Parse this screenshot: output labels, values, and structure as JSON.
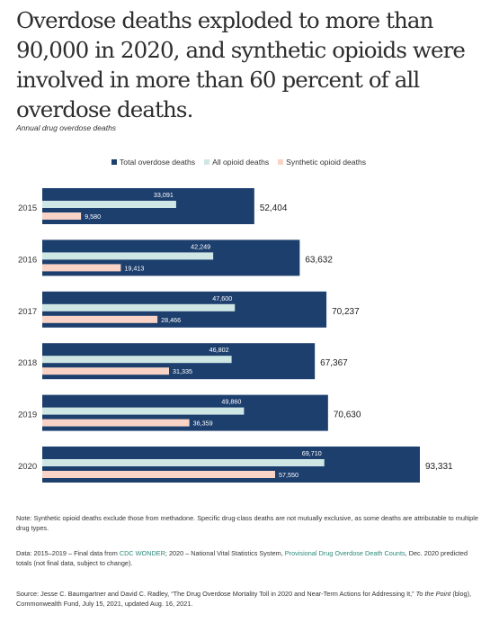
{
  "headline": "Overdose deaths exploded to more than 90,000 in 2020, and synthetic opioids were involved in more than 60 percent of all overdose deaths.",
  "chart_data": {
    "type": "bar",
    "title": "Annual drug overdose deaths",
    "categories": [
      "2015",
      "2016",
      "2017",
      "2018",
      "2019",
      "2020"
    ],
    "series": [
      {
        "name": "Total overdose deaths",
        "values": [
          52404,
          63632,
          70237,
          67367,
          70630,
          93331
        ],
        "labels": [
          "52,404",
          "63,632",
          "70,237",
          "67,367",
          "70,630",
          "93,331"
        ],
        "color": "#1d3f6e"
      },
      {
        "name": "All opioid deaths",
        "values": [
          33091,
          42249,
          47600,
          46802,
          49860,
          69710
        ],
        "labels": [
          "33,091",
          "42,249",
          "47,600",
          "46,802",
          "49,860",
          "69,710"
        ],
        "color": "#cfe7e4"
      },
      {
        "name": "Synthetic opioid deaths",
        "values": [
          9580,
          19413,
          28466,
          31335,
          36359,
          57550
        ],
        "labels": [
          "9,580",
          "19,413",
          "28,466",
          "31,335",
          "36,359",
          "57,550"
        ],
        "color": "#f9d4c6"
      }
    ],
    "orientation": "horizontal",
    "legend_position": "top"
  },
  "notes": {
    "note": "Note: Synthetic opioid deaths exclude those from methadone. Specific drug-class deaths are not mutually exclusive, as some deaths are attributable to multiple drug types.",
    "data_prefix": "Data: 2015–2019 – Final data from ",
    "data_link1": "CDC WONDER",
    "data_mid": "; 2020 – National Vital Statistics System, ",
    "data_link2": "Provisional Drug Overdose Death Counts",
    "data_suffix": ", Dec. 2020 predicted totals (not final data, subject to change).",
    "source_prefix": "Source: Jesse C. Baumgartner and David C. Radley, “The Drug Overdose Mortality Toll in 2020 and Near-Term Actions for Addressing It,” ",
    "source_italic": "To the Point",
    "source_suffix": " (blog), Commonwealth Fund, July 15, 2021, updated Aug. 16, 2021."
  }
}
